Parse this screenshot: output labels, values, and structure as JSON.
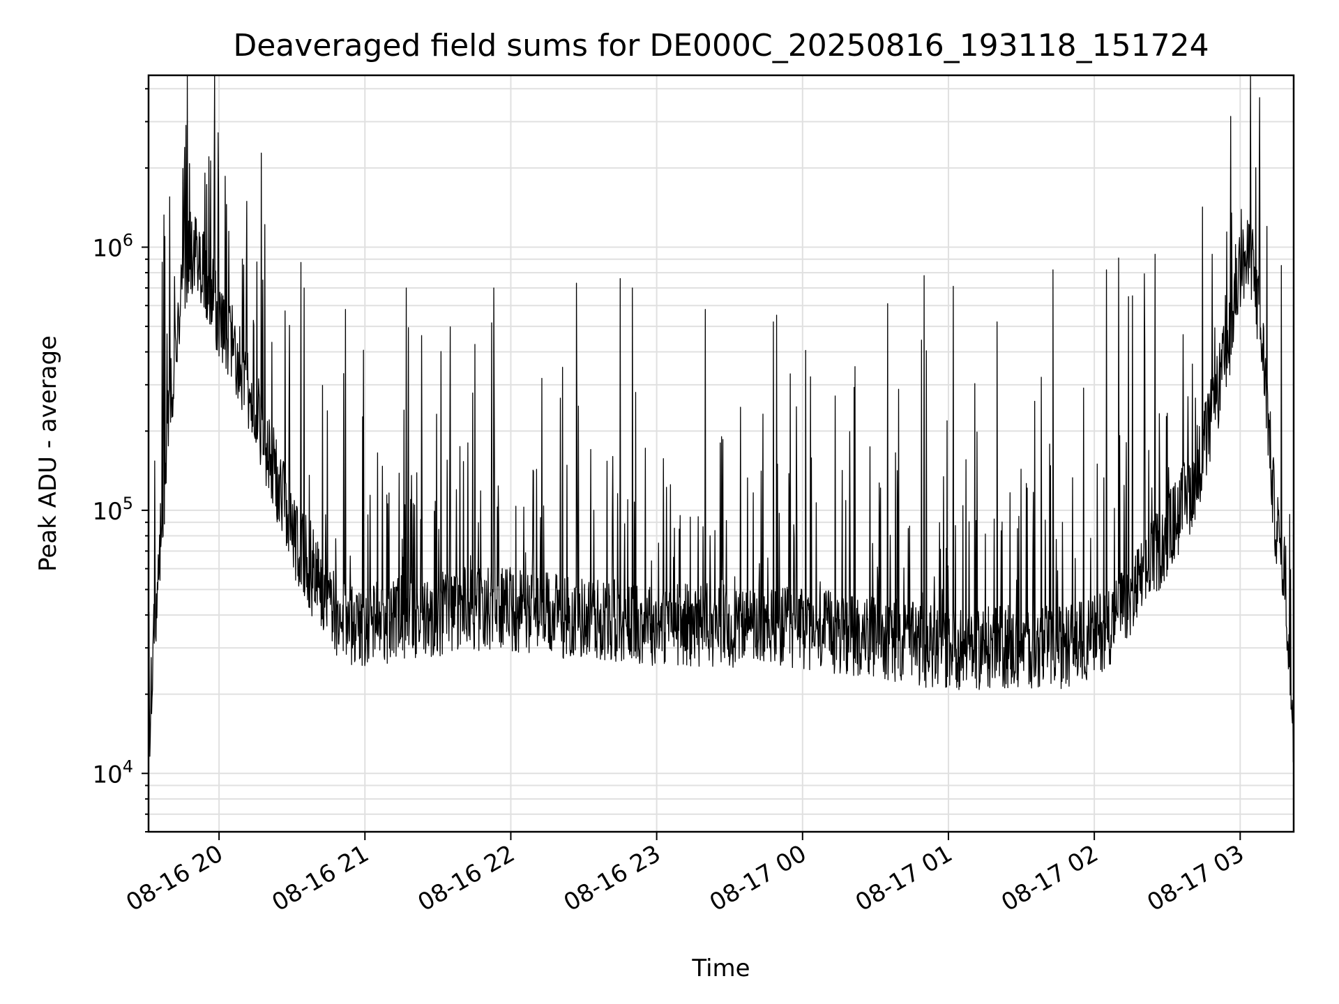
{
  "chart_data": {
    "type": "line",
    "title": "Deaveraged field sums for DE000C_20250816_193118_151724",
    "xlabel": "Time",
    "ylabel": "Peak ADU - average",
    "yscale": "log",
    "ylim": [
      6000,
      4500000
    ],
    "xlim": [
      "2025-08-16 19:31",
      "2025-08-17 03:22"
    ],
    "grid": true,
    "legend": "none",
    "line_color": "#000000",
    "grid_color": "#e0e0e0",
    "x_ticks": [
      {
        "value": "2025-08-16 20:00",
        "label": "08-16 20"
      },
      {
        "value": "2025-08-16 21:00",
        "label": "08-16 21"
      },
      {
        "value": "2025-08-16 22:00",
        "label": "08-16 22"
      },
      {
        "value": "2025-08-16 23:00",
        "label": "08-16 23"
      },
      {
        "value": "2025-08-17 00:00",
        "label": "08-17 00"
      },
      {
        "value": "2025-08-17 01:00",
        "label": "08-17 01"
      },
      {
        "value": "2025-08-17 02:00",
        "label": "08-17 02"
      },
      {
        "value": "2025-08-17 03:00",
        "label": "08-17 03"
      }
    ],
    "y_ticks": [
      {
        "value": 10000,
        "base": "10",
        "exp": "4"
      },
      {
        "value": 100000,
        "base": "10",
        "exp": "5"
      },
      {
        "value": 1000000,
        "base": "10",
        "exp": "6"
      }
    ],
    "series": [
      {
        "x": [
          "2025-08-16 19:31",
          "2025-08-16 19:33",
          "2025-08-16 19:36",
          "2025-08-16 19:39",
          "2025-08-16 19:42",
          "2025-08-16 19:45",
          "2025-08-16 19:48",
          "2025-08-16 19:51",
          "2025-08-16 19:54",
          "2025-08-16 19:57",
          "2025-08-16 20:00",
          "2025-08-16 20:05",
          "2025-08-16 20:10",
          "2025-08-16 20:15",
          "2025-08-16 20:20",
          "2025-08-16 20:25",
          "2025-08-16 20:30",
          "2025-08-16 20:35",
          "2025-08-16 20:40",
          "2025-08-16 20:45",
          "2025-08-16 20:50",
          "2025-08-16 20:55",
          "2025-08-16 21:00",
          "2025-08-16 21:10",
          "2025-08-16 21:20",
          "2025-08-16 21:30",
          "2025-08-16 21:40",
          "2025-08-16 21:50",
          "2025-08-16 22:00",
          "2025-08-16 22:15",
          "2025-08-16 22:30",
          "2025-08-16 22:45",
          "2025-08-16 23:00",
          "2025-08-16 23:15",
          "2025-08-16 23:30",
          "2025-08-16 23:45",
          "2025-08-17 00:00",
          "2025-08-17 00:15",
          "2025-08-17 00:30",
          "2025-08-17 00:45",
          "2025-08-17 01:00",
          "2025-08-17 01:15",
          "2025-08-17 01:30",
          "2025-08-17 01:45",
          "2025-08-17 02:00",
          "2025-08-17 02:10",
          "2025-08-17 02:20",
          "2025-08-17 02:30",
          "2025-08-17 02:40",
          "2025-08-17 02:45",
          "2025-08-17 02:50",
          "2025-08-17 02:55",
          "2025-08-17 03:00",
          "2025-08-17 03:05",
          "2025-08-17 03:10",
          "2025-08-17 03:14",
          "2025-08-17 03:18",
          "2025-08-17 03:22"
        ],
        "y": [
          12000,
          30000,
          80000,
          200000,
          420000,
          750000,
          950000,
          900000,
          780000,
          650000,
          520000,
          430000,
          330000,
          240000,
          170000,
          120000,
          85000,
          65000,
          52000,
          44000,
          39000,
          37000,
          36000,
          38000,
          39000,
          40000,
          42000,
          42000,
          42000,
          40000,
          39000,
          38000,
          37000,
          37000,
          36000,
          36000,
          35000,
          34000,
          33000,
          31000,
          30000,
          30000,
          30000,
          30000,
          33000,
          40000,
          55000,
          80000,
          120000,
          170000,
          260000,
          420000,
          850000,
          900000,
          350000,
          100000,
          60000,
          15000
        ]
      }
    ],
    "spikes": [
      {
        "x": "2025-08-16 19:58",
        "y": 1900000
      },
      {
        "x": "2025-08-16 20:04",
        "y": 1150000
      },
      {
        "x": "2025-08-16 20:18",
        "y": 750000
      },
      {
        "x": "2025-08-16 20:35",
        "y": 700000
      },
      {
        "x": "2025-08-16 20:52",
        "y": 580000
      },
      {
        "x": "2025-08-16 21:17",
        "y": 700000
      },
      {
        "x": "2025-08-16 21:53",
        "y": 700000
      },
      {
        "x": "2025-08-16 22:27",
        "y": 730000
      },
      {
        "x": "2025-08-16 22:45",
        "y": 760000
      },
      {
        "x": "2025-08-16 22:50",
        "y": 700000
      },
      {
        "x": "2025-08-16 23:20",
        "y": 580000
      },
      {
        "x": "2025-08-16 23:48",
        "y": 520000
      },
      {
        "x": "2025-08-17 00:35",
        "y": 610000
      },
      {
        "x": "2025-08-17 00:50",
        "y": 780000
      },
      {
        "x": "2025-08-17 01:02",
        "y": 710000
      },
      {
        "x": "2025-08-17 01:20",
        "y": 520000
      },
      {
        "x": "2025-08-17 01:43",
        "y": 820000
      },
      {
        "x": "2025-08-17 02:05",
        "y": 820000
      },
      {
        "x": "2025-08-17 02:10",
        "y": 910000
      },
      {
        "x": "2025-08-17 02:25",
        "y": 940000
      },
      {
        "x": "2025-08-17 03:08",
        "y": 3700000
      },
      {
        "x": "2025-08-17 03:11",
        "y": 1200000
      }
    ]
  }
}
